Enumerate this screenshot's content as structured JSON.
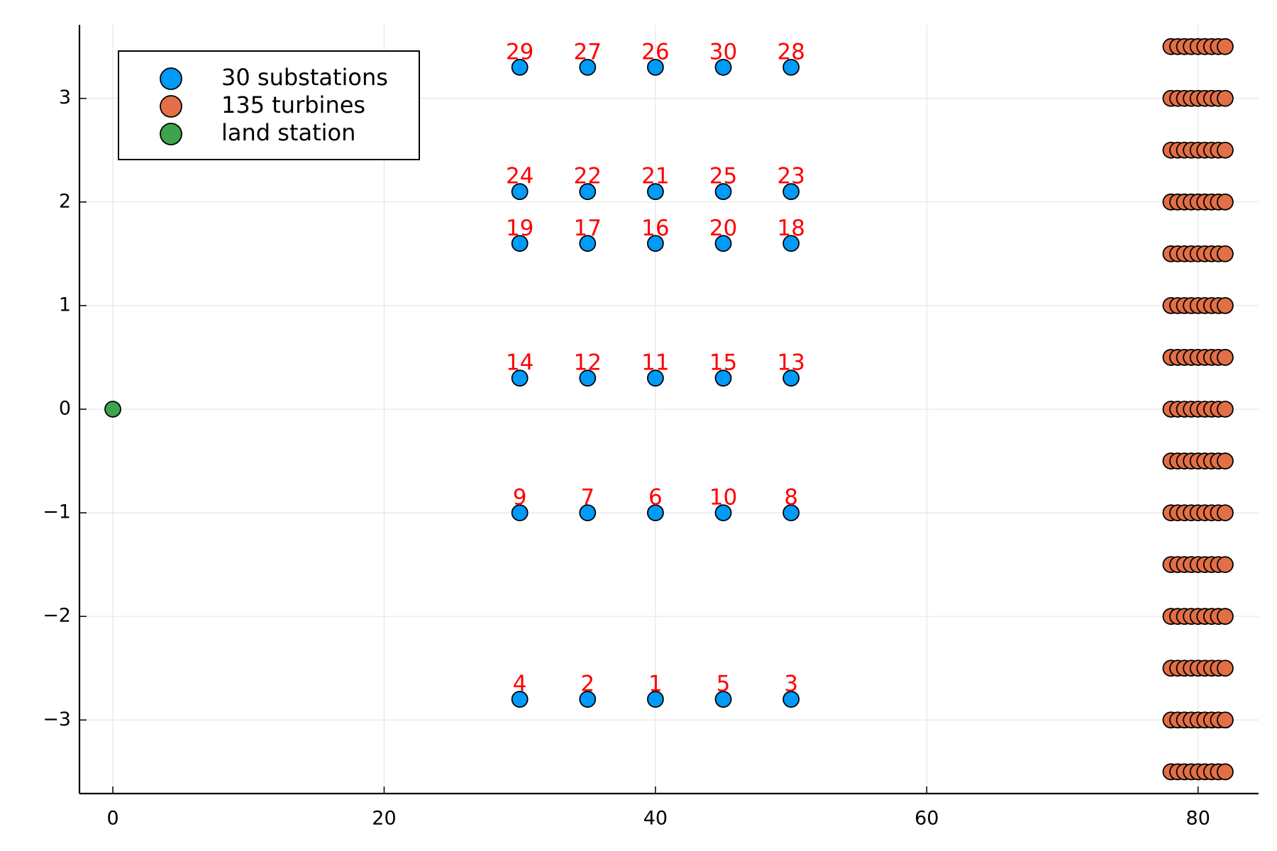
{
  "chart_data": {
    "type": "scatter",
    "xlim": [
      -2.46,
      84.46
    ],
    "ylim": [
      -3.71,
      3.71
    ],
    "xticks": [
      0,
      20,
      40,
      60,
      80
    ],
    "yticks": [
      {
        "value": -3,
        "label": "−3"
      },
      {
        "value": -2,
        "label": "−2"
      },
      {
        "value": -1,
        "label": "−1"
      },
      0,
      1,
      2,
      3
    ],
    "grid": true,
    "legend": "top-left",
    "label_color": "#ff0000",
    "series": [
      {
        "name": "30 substations",
        "color": "#009af9",
        "x": [
          40,
          35,
          50,
          30,
          45,
          40,
          35,
          50,
          30,
          45,
          40,
          35,
          50,
          30,
          45,
          40,
          35,
          50,
          30,
          45,
          40,
          35,
          50,
          30,
          45,
          40,
          35,
          50,
          30,
          45
        ],
        "y": [
          -2.8,
          -2.8,
          -2.8,
          -2.8,
          -2.8,
          -1,
          -1,
          -1,
          -1,
          -1,
          0.3,
          0.3,
          0.3,
          0.3,
          0.3,
          1.6,
          1.6,
          1.6,
          1.6,
          1.6,
          2.1,
          2.1,
          2.1,
          2.1,
          2.1,
          3.3,
          3.3,
          3.3,
          3.3,
          3.3
        ],
        "labels": [
          "1",
          "2",
          "3",
          "4",
          "5",
          "6",
          "7",
          "8",
          "9",
          "10",
          "11",
          "12",
          "13",
          "14",
          "15",
          "16",
          "17",
          "18",
          "19",
          "20",
          "21",
          "22",
          "23",
          "24",
          "25",
          "26",
          "27",
          "28",
          "29",
          "30"
        ]
      },
      {
        "name": "135 turbines",
        "color": "#e26f46",
        "x": [
          78,
          78.5,
          79,
          79.5,
          80,
          80.5,
          81,
          81.5,
          82,
          78,
          78.5,
          79,
          79.5,
          80,
          80.5,
          81,
          81.5,
          82,
          78,
          78.5,
          79,
          79.5,
          80,
          80.5,
          81,
          81.5,
          82,
          78,
          78.5,
          79,
          79.5,
          80,
          80.5,
          81,
          81.5,
          82,
          78,
          78.5,
          79,
          79.5,
          80,
          80.5,
          81,
          81.5,
          82,
          78,
          78.5,
          79,
          79.5,
          80,
          80.5,
          81,
          81.5,
          82,
          78,
          78.5,
          79,
          79.5,
          80,
          80.5,
          81,
          81.5,
          82,
          78,
          78.5,
          79,
          79.5,
          80,
          80.5,
          81,
          81.5,
          82,
          78,
          78.5,
          79,
          79.5,
          80,
          80.5,
          81,
          81.5,
          82,
          78,
          78.5,
          79,
          79.5,
          80,
          80.5,
          81,
          81.5,
          82,
          78,
          78.5,
          79,
          79.5,
          80,
          80.5,
          81,
          81.5,
          82,
          78,
          78.5,
          79,
          79.5,
          80,
          80.5,
          81,
          81.5,
          82,
          78,
          78.5,
          79,
          79.5,
          80,
          80.5,
          81,
          81.5,
          82,
          78,
          78.5,
          79,
          79.5,
          80,
          80.5,
          81,
          81.5,
          82,
          78,
          78.5,
          79,
          79.5,
          80,
          80.5,
          81,
          81.5,
          82
        ],
        "y": [
          -3.5,
          -3.5,
          -3.5,
          -3.5,
          -3.5,
          -3.5,
          -3.5,
          -3.5,
          -3.5,
          -3,
          -3,
          -3,
          -3,
          -3,
          -3,
          -3,
          -3,
          -3,
          -2.5,
          -2.5,
          -2.5,
          -2.5,
          -2.5,
          -2.5,
          -2.5,
          -2.5,
          -2.5,
          -2,
          -2,
          -2,
          -2,
          -2,
          -2,
          -2,
          -2,
          -2,
          -1.5,
          -1.5,
          -1.5,
          -1.5,
          -1.5,
          -1.5,
          -1.5,
          -1.5,
          -1.5,
          -1,
          -1,
          -1,
          -1,
          -1,
          -1,
          -1,
          -1,
          -1,
          -0.5,
          -0.5,
          -0.5,
          -0.5,
          -0.5,
          -0.5,
          -0.5,
          -0.5,
          -0.5,
          0,
          0,
          0,
          0,
          0,
          0,
          0,
          0,
          0,
          0.5,
          0.5,
          0.5,
          0.5,
          0.5,
          0.5,
          0.5,
          0.5,
          0.5,
          1,
          1,
          1,
          1,
          1,
          1,
          1,
          1,
          1,
          1.5,
          1.5,
          1.5,
          1.5,
          1.5,
          1.5,
          1.5,
          1.5,
          1.5,
          2,
          2,
          2,
          2,
          2,
          2,
          2,
          2,
          2,
          2.5,
          2.5,
          2.5,
          2.5,
          2.5,
          2.5,
          2.5,
          2.5,
          2.5,
          3,
          3,
          3,
          3,
          3,
          3,
          3,
          3,
          3,
          3.5,
          3.5,
          3.5,
          3.5,
          3.5,
          3.5,
          3.5,
          3.5,
          3.5
        ]
      },
      {
        "name": "land station",
        "color": "#3da44d",
        "x": [
          0
        ],
        "y": [
          0
        ]
      }
    ]
  }
}
